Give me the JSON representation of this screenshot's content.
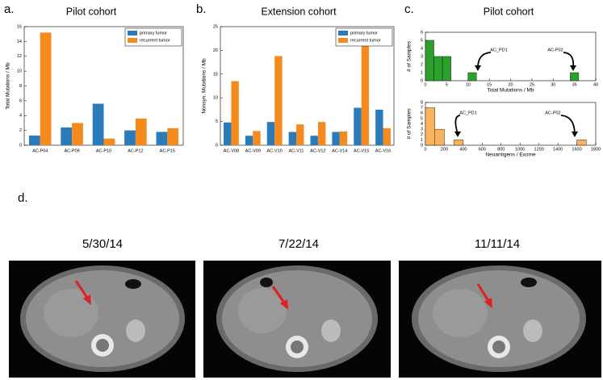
{
  "panel_labels": [
    "a.",
    "b.",
    "c.",
    "d."
  ],
  "scan_dates": [
    "5/30/14",
    "7/22/14",
    "11/11/14"
  ],
  "chart_data": [
    {
      "type": "bar",
      "title": "Pilot cohort",
      "y_label": "Total Mutations / Mb",
      "categories": [
        "AC-P04",
        "AC-P09",
        "AC-P10",
        "AC-P12",
        "AC-P15"
      ],
      "series": [
        {
          "name": "primary tumor",
          "color": "#2b7bba",
          "values": [
            1.3,
            2.4,
            5.6,
            2.0,
            1.8
          ]
        },
        {
          "name": "recurrent tumor",
          "color": "#f58a1f",
          "values": [
            15.2,
            3.0,
            0.9,
            3.6,
            2.3
          ]
        }
      ],
      "ylim": [
        0,
        16
      ],
      "yticks": [
        0,
        2,
        4,
        6,
        8,
        10,
        12,
        14,
        16
      ],
      "legend": "upper right"
    },
    {
      "type": "bar",
      "title": "Extension cohort",
      "y_label": "Nonsyn. Mutations / Mb",
      "categories": [
        "AC-V08",
        "AC-V09",
        "AC-V10",
        "AC-V11",
        "AC-V12",
        "AC-V14",
        "AC-V15",
        "AC-V16"
      ],
      "series": [
        {
          "name": "primary tumor",
          "color": "#2b7bba",
          "values": [
            4.8,
            2.0,
            4.9,
            2.8,
            2.0,
            2.8,
            7.9,
            7.5
          ]
        },
        {
          "name": "recurrent tumor",
          "color": "#f58a1f",
          "values": [
            13.5,
            3.0,
            18.8,
            4.4,
            4.9,
            2.9,
            21.3,
            3.6
          ]
        }
      ],
      "ylim": [
        0,
        25
      ],
      "yticks": [
        0,
        5,
        10,
        15,
        20,
        25
      ],
      "legend": "upper right"
    },
    {
      "type": "histogram",
      "title": "Pilot cohort",
      "x_label": "Total Mutations / Mb",
      "y_label": "# of Samples",
      "color": "#2ca02c",
      "bins": [
        0,
        2,
        4,
        6,
        8,
        10,
        12,
        14,
        16,
        18,
        20,
        22,
        24,
        26,
        28,
        30,
        32,
        34,
        36
      ],
      "values": [
        5,
        3,
        3,
        0,
        0,
        1,
        0,
        0,
        0,
        0,
        0,
        0,
        0,
        0,
        0,
        0,
        0,
        1
      ],
      "xlim": [
        0,
        40
      ],
      "xticks": [
        0,
        5,
        10,
        15,
        20,
        25,
        30,
        35,
        40
      ],
      "ylim": [
        0,
        6
      ],
      "yticks": [
        0,
        1,
        2,
        3,
        4,
        5,
        6
      ],
      "annotations": [
        "AC_PD1",
        "AC-P02"
      ]
    },
    {
      "type": "histogram",
      "x_label": "Neoantigens / Exome",
      "y_label": "# of Samples",
      "color": "#f9b35c",
      "bins": [
        0,
        100,
        200,
        300,
        400,
        500,
        600,
        700,
        800,
        900,
        1000,
        1100,
        1200,
        1300,
        1400,
        1500,
        1600,
        1700
      ],
      "values": [
        7,
        3,
        0,
        1,
        0,
        0,
        0,
        0,
        0,
        0,
        0,
        0,
        0,
        0,
        0,
        0,
        1
      ],
      "xlim": [
        0,
        1800
      ],
      "xticks": [
        0,
        200,
        400,
        600,
        800,
        1000,
        1200,
        1400,
        1600,
        1800
      ],
      "ylim": [
        0,
        8
      ],
      "yticks": [
        0,
        1,
        2,
        3,
        4,
        5,
        6,
        7,
        8
      ],
      "annotations": [
        "AC_PD1",
        "AC-P02"
      ]
    }
  ]
}
